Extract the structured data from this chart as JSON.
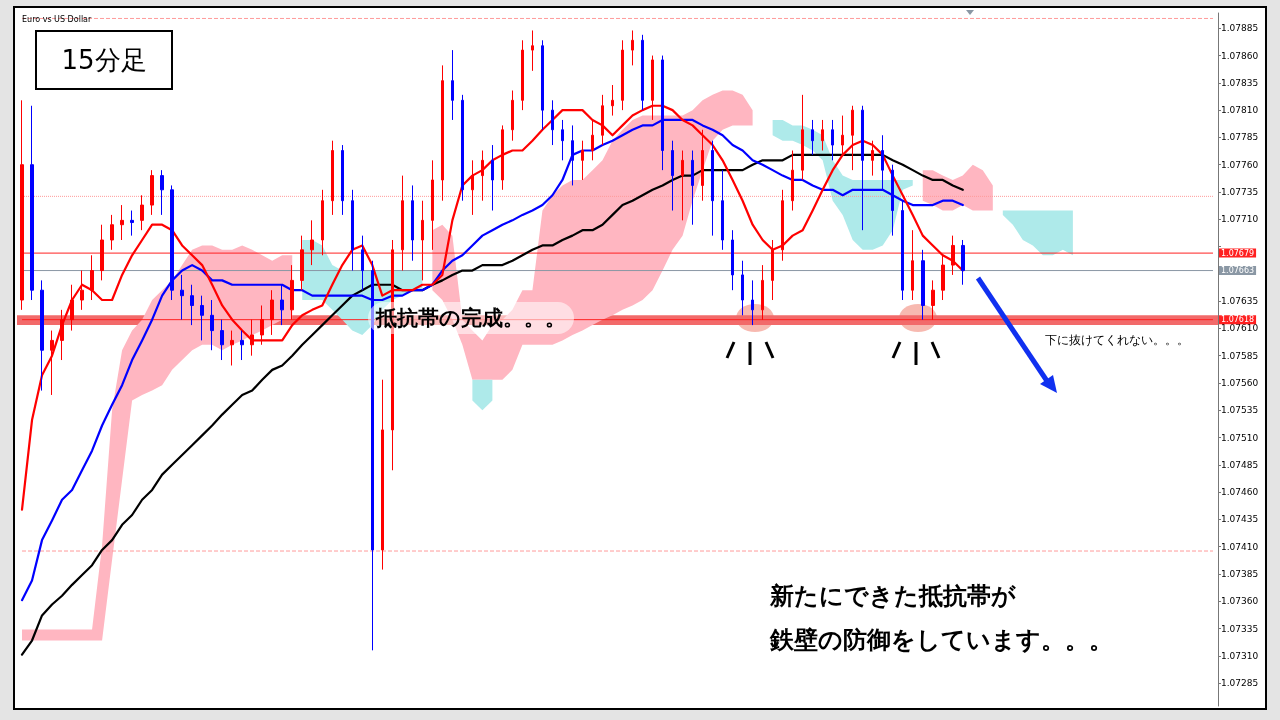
{
  "chart_data": {
    "type": "candlestick",
    "categories": [
      null,
      null,
      null,
      null,
      null,
      null,
      null,
      null,
      null,
      null,
      null,
      null,
      null,
      null,
      null,
      null,
      null,
      null,
      null,
      null,
      null,
      null,
      null,
      null,
      null,
      null,
      null,
      null,
      null,
      null,
      null,
      null,
      null,
      null,
      null,
      null,
      null,
      null,
      null,
      null,
      null,
      null,
      null,
      null,
      null,
      null,
      null,
      null,
      null,
      null,
      null,
      null,
      null,
      null,
      null,
      null,
      null,
      null,
      null,
      null,
      null,
      null,
      null,
      null,
      null,
      null,
      null,
      null,
      null,
      null,
      null,
      null,
      null,
      null,
      null,
      null,
      null,
      null,
      null,
      null,
      null,
      null,
      null,
      null,
      null,
      null,
      null,
      null,
      null,
      null,
      null,
      null,
      null,
      null,
      null,
      null,
      null,
      null,
      null,
      null,
      null,
      null,
      null,
      null,
      null,
      null,
      null,
      null,
      null,
      null,
      null,
      null,
      null,
      null,
      null,
      null,
      null,
      null,
      null,
      null
    ],
    "series": [
      {
        "type": "area",
        "color": "#ffb6c1",
        "values": [
          null,
          null,
          null,
          null,
          null,
          null,
          null,
          null,
          null,
          null,
          null,
          null,
          null,
          null,
          null,
          null,
          null,
          null,
          null,
          null,
          null,
          null,
          null,
          null,
          null,
          null,
          null,
          null,
          null,
          null,
          null,
          null,
          null,
          null,
          null,
          null,
          null,
          null,
          null,
          null,
          null,
          null,
          null,
          null,
          null,
          null,
          null,
          null,
          null,
          null,
          null,
          null,
          null,
          null,
          null,
          null,
          null,
          null,
          null,
          null,
          null,
          null,
          null,
          null,
          null,
          null,
          null,
          null,
          null,
          null,
          null,
          null,
          null,
          null,
          null,
          null,
          null,
          null,
          null,
          null,
          null,
          null,
          null,
          null,
          null,
          null,
          null,
          null,
          null,
          null,
          null,
          null,
          null,
          null,
          null,
          null,
          null,
          null,
          null,
          null,
          null,
          null,
          null,
          null,
          null,
          null,
          null,
          null,
          null,
          null,
          null,
          null,
          null,
          null,
          null,
          null,
          null,
          null,
          null,
          null
        ],
        "upper": [
          1.07334,
          1.07334,
          1.07334,
          1.07334,
          1.07334,
          1.07334,
          1.07334,
          1.07334,
          1.07411,
          1.07535,
          1.0759,
          1.07608,
          1.07618,
          1.07636,
          1.07645,
          1.07654,
          1.07668,
          1.07682,
          1.07686,
          1.07686,
          1.07682,
          1.07682,
          1.07686,
          1.07682,
          1.07677,
          1.07672,
          1.07677,
          1.07677,
          null,
          null,
          null,
          null,
          null,
          null,
          null,
          null,
          null,
          null,
          null,
          null,
          null,
          1.077,
          1.07705,
          1.07695,
          1.07618,
          1.07608,
          1.07599,
          1.07613,
          1.07618,
          1.07627,
          1.07645,
          1.07645,
          1.07718,
          1.07732,
          1.07741,
          1.07746,
          1.07746,
          1.07755,
          1.07764,
          1.07782,
          1.07792,
          1.07801,
          1.07805,
          1.07805,
          1.07805,
          1.07805,
          1.07805,
          1.0781,
          1.07819,
          1.07824,
          1.07828,
          1.07828,
          1.07824,
          1.0781,
          null,
          null,
          null,
          null,
          null,
          null,
          null,
          null,
          null,
          null,
          null,
          null,
          null,
          null,
          null,
          null,
          1.07755,
          1.07755,
          1.0775,
          1.07746,
          1.0775,
          1.0776,
          1.07755,
          1.07741,
          null,
          null,
          null,
          null,
          null,
          null,
          null,
          null,
          null,
          null,
          null,
          null,
          null,
          null,
          null,
          null,
          null,
          null,
          null,
          null,
          null,
          null
        ],
        "lower": [
          1.07324,
          1.07324,
          1.07324,
          1.07324,
          1.07324,
          1.07324,
          1.07324,
          1.07324,
          1.07324,
          1.07398,
          1.07471,
          1.07544,
          1.07549,
          1.07553,
          1.07558,
          1.07572,
          1.07581,
          1.0759,
          1.07595,
          1.07595,
          1.0759,
          1.07595,
          1.07599,
          1.07604,
          1.07608,
          1.07613,
          1.07618,
          1.07618,
          null,
          null,
          null,
          null,
          null,
          null,
          null,
          null,
          null,
          null,
          null,
          null,
          null,
          1.07645,
          1.07636,
          1.07618,
          1.07595,
          1.07563,
          1.07563,
          1.07563,
          1.07563,
          1.07572,
          1.07595,
          1.07595,
          1.07595,
          1.07595,
          1.07599,
          1.07604,
          1.07608,
          1.07613,
          1.07618,
          1.07622,
          1.07627,
          1.07631,
          1.07636,
          1.07645,
          1.07663,
          1.07682,
          1.07695,
          1.07727,
          1.07755,
          1.07782,
          1.07792,
          1.07796,
          1.07796,
          1.07796,
          null,
          null,
          null,
          null,
          null,
          null,
          null,
          null,
          null,
          null,
          null,
          null,
          null,
          null,
          null,
          null,
          1.07727,
          1.07723,
          1.07718,
          1.07718,
          1.07723,
          1.07718,
          1.07718,
          1.07718,
          null,
          null,
          null,
          null,
          null,
          null,
          null,
          null,
          null,
          null,
          null,
          null,
          null,
          null,
          null,
          null,
          null,
          null,
          null,
          null,
          null,
          null
        ]
      },
      {
        "type": "area",
        "color": "#aeeaea",
        "values": [
          null,
          null,
          null,
          null,
          null,
          null,
          null,
          null,
          null,
          null,
          null,
          null,
          null,
          null,
          null,
          null,
          null,
          null,
          null,
          null,
          null,
          null,
          null,
          null,
          null,
          null,
          null,
          null,
          null,
          null,
          null,
          null,
          null,
          null,
          null,
          null,
          null,
          null,
          null,
          null,
          null,
          null,
          null,
          null,
          null,
          null,
          null,
          null,
          null,
          null,
          null,
          null,
          null,
          null,
          null,
          null,
          null,
          null,
          null,
          null,
          null,
          null,
          null,
          null,
          null,
          null,
          null,
          null,
          null,
          null,
          null,
          null,
          null,
          null,
          null,
          null,
          null,
          null,
          null,
          null,
          null,
          null,
          null,
          null,
          null,
          null,
          null,
          null,
          null,
          null,
          null,
          null,
          null,
          null,
          null,
          null,
          null,
          null,
          null,
          null,
          null,
          null,
          null,
          null,
          null,
          null,
          null,
          null,
          null,
          null,
          null,
          null,
          null,
          null,
          null,
          null,
          null,
          null,
          null,
          null
        ],
        "upper": [
          null,
          null,
          null,
          null,
          null,
          null,
          null,
          null,
          null,
          null,
          null,
          null,
          null,
          null,
          null,
          null,
          null,
          null,
          null,
          null,
          null,
          null,
          null,
          null,
          null,
          null,
          null,
          null,
          1.07691,
          1.07691,
          1.07686,
          1.07668,
          1.07663,
          1.07663,
          1.07663,
          1.07663,
          1.07663,
          1.07663,
          1.07663,
          1.07663,
          1.07663,
          null,
          null,
          null,
          null,
          1.07563,
          1.07563,
          1.07563,
          null,
          null,
          null,
          null,
          null,
          null,
          null,
          null,
          null,
          null,
          null,
          null,
          null,
          null,
          null,
          null,
          null,
          null,
          null,
          null,
          null,
          null,
          null,
          null,
          null,
          null,
          null,
          1.07801,
          1.07801,
          1.07796,
          1.07796,
          1.07792,
          1.07787,
          1.07764,
          1.0775,
          1.07746,
          1.07746,
          1.07746,
          1.07746,
          1.07746,
          1.07746,
          1.07746,
          null,
          null,
          null,
          null,
          null,
          null,
          null,
          null,
          1.07718,
          1.07718,
          1.07718,
          1.07718,
          1.07718,
          1.07718,
          1.07718,
          1.07718,
          null,
          null,
          null,
          null,
          null,
          null,
          null,
          null,
          null,
          null,
          null,
          null,
          null,
          null
        ],
        "lower": [
          null,
          null,
          null,
          null,
          null,
          null,
          null,
          null,
          null,
          null,
          null,
          null,
          null,
          null,
          null,
          null,
          null,
          null,
          null,
          null,
          null,
          null,
          null,
          null,
          null,
          null,
          null,
          null,
          1.07636,
          1.07636,
          1.07636,
          1.07627,
          1.07618,
          1.07608,
          1.07604,
          1.07613,
          1.07627,
          1.07636,
          1.0764,
          1.07645,
          1.07645,
          null,
          null,
          null,
          null,
          1.07544,
          1.07535,
          1.07544,
          null,
          null,
          null,
          null,
          null,
          null,
          null,
          null,
          null,
          null,
          null,
          null,
          null,
          null,
          null,
          null,
          null,
          null,
          null,
          null,
          null,
          null,
          null,
          null,
          null,
          null,
          null,
          1.07787,
          1.07782,
          1.07782,
          1.07778,
          1.07773,
          1.07764,
          1.07727,
          1.07714,
          1.07691,
          1.07682,
          1.07682,
          1.07686,
          1.077,
          1.07737,
          1.07741,
          null,
          null,
          null,
          null,
          null,
          null,
          null,
          null,
          1.07714,
          1.07705,
          1.07691,
          1.07686,
          1.07677,
          1.07677,
          1.07682,
          1.07677,
          null,
          null,
          null,
          null,
          null,
          null,
          null,
          null,
          null,
          null,
          null,
          null,
          null,
          null
        ]
      },
      {
        "type": "line",
        "color": "#000000",
        "values": [
          1.07311,
          1.07324,
          1.07347,
          1.07357,
          1.07365,
          1.07375,
          1.07384,
          1.07393,
          1.07407,
          1.07416,
          1.0743,
          1.07439,
          1.07453,
          1.07462,
          1.07476,
          1.07485,
          1.07494,
          1.07503,
          1.07512,
          1.07521,
          1.07531,
          1.0754,
          1.07549,
          1.07553,
          1.07563,
          1.07572,
          1.07576,
          1.07585,
          1.07595,
          1.07604,
          1.07613,
          1.07622,
          1.07631,
          1.0764,
          1.07645,
          1.0765,
          1.0765,
          1.0765,
          1.07645,
          1.07645,
          1.07645,
          1.0765,
          1.07654,
          1.07659,
          1.07663,
          1.07663,
          1.07668,
          1.07668,
          1.07668,
          1.07672,
          1.07677,
          1.07682,
          1.07686,
          1.07686,
          1.07691,
          1.07695,
          1.077,
          1.077,
          1.07705,
          1.07714,
          1.07723,
          1.07727,
          1.07732,
          1.07737,
          1.07741,
          1.07746,
          1.0775,
          1.0775,
          1.07755,
          1.07755,
          1.07755,
          1.07755,
          1.07755,
          1.0776,
          1.07764,
          1.07764,
          1.07764,
          1.07769,
          1.07769,
          1.07769,
          1.07769,
          1.07769,
          1.07769,
          1.07769,
          1.07769,
          1.07769,
          1.07769,
          1.07764,
          1.0776,
          1.07755,
          1.0775,
          1.07746,
          1.07746,
          1.07741,
          1.07737,
          null,
          null,
          null,
          null,
          null,
          null,
          null,
          null,
          null,
          null,
          null,
          null,
          null,
          null,
          null,
          null,
          null,
          null,
          null,
          null,
          null,
          null,
          null,
          null,
          null
        ]
      },
      {
        "type": "line",
        "color": "#0000ff",
        "values": [
          1.07361,
          1.07379,
          1.07416,
          1.07434,
          1.07453,
          1.07462,
          1.0748,
          1.07498,
          1.07521,
          1.0754,
          1.07558,
          1.07581,
          1.07599,
          1.07618,
          1.0764,
          1.07654,
          1.07663,
          1.07668,
          1.07663,
          1.07654,
          1.07654,
          1.0765,
          1.0765,
          1.0765,
          1.0765,
          1.0765,
          1.0765,
          1.07645,
          1.07645,
          1.0764,
          1.0764,
          1.0764,
          1.0764,
          1.0764,
          1.0764,
          1.07636,
          1.07636,
          1.0764,
          1.0764,
          1.07645,
          1.07645,
          1.0765,
          1.07663,
          1.07672,
          1.07677,
          1.07686,
          1.07695,
          1.077,
          1.07705,
          1.07709,
          1.07714,
          1.07718,
          1.07723,
          1.07732,
          1.07746,
          1.07769,
          1.07773,
          1.07773,
          1.07778,
          1.07782,
          1.07787,
          1.07792,
          1.07796,
          1.07796,
          1.07801,
          1.07801,
          1.07801,
          1.07801,
          1.07796,
          1.07792,
          1.07787,
          1.07778,
          1.07773,
          1.07764,
          1.0776,
          1.07755,
          1.0775,
          1.07746,
          1.07746,
          1.07741,
          1.07737,
          1.07737,
          1.07732,
          1.07737,
          1.07737,
          1.07737,
          1.07737,
          1.07732,
          1.07727,
          1.07723,
          1.07723,
          1.07723,
          1.07727,
          1.07727,
          1.07723,
          null,
          null,
          null,
          null,
          null,
          null,
          null,
          null,
          null,
          null,
          null,
          null,
          null,
          null,
          null,
          null,
          null,
          null,
          null,
          null,
          null,
          null,
          null,
          null,
          null
        ]
      },
      {
        "type": "line",
        "color": "#ff0000",
        "values": [
          1.07444,
          1.07526,
          1.07567,
          1.07585,
          1.07613,
          1.07636,
          1.0765,
          1.07645,
          1.07636,
          1.07636,
          1.07659,
          1.07677,
          1.07691,
          1.07705,
          1.07705,
          1.077,
          1.07686,
          1.07677,
          1.07668,
          1.0765,
          1.07631,
          1.07618,
          1.07608,
          1.07599,
          1.07599,
          1.07599,
          1.07599,
          1.07613,
          1.07622,
          1.07627,
          1.07631,
          1.0765,
          1.07668,
          1.07682,
          1.07686,
          1.07668,
          1.0764,
          1.07645,
          1.07645,
          1.07645,
          1.0765,
          1.0765,
          1.07659,
          1.07709,
          1.07741,
          1.0775,
          1.07755,
          1.07764,
          1.07769,
          1.07773,
          1.07773,
          1.07782,
          1.07792,
          1.07801,
          1.0781,
          1.0781,
          1.0781,
          1.07801,
          1.07796,
          1.07787,
          1.07796,
          1.07805,
          1.0781,
          1.07814,
          1.07814,
          1.0781,
          1.07801,
          1.07796,
          1.07787,
          1.07778,
          1.07764,
          1.07746,
          1.07727,
          1.07705,
          1.07691,
          1.07682,
          1.07686,
          1.07695,
          1.077,
          1.07718,
          1.07737,
          1.07755,
          1.07769,
          1.07778,
          1.07782,
          1.07778,
          1.07769,
          1.0775,
          1.07732,
          1.07714,
          1.07695,
          1.07686,
          1.07677,
          1.07672,
          1.07663,
          null,
          null,
          null,
          null,
          null,
          null,
          null,
          null,
          null,
          null,
          null,
          null,
          null,
          null,
          null,
          null,
          null,
          null,
          null,
          null,
          null,
          null,
          null,
          null,
          null
        ]
      },
      {
        "type": "candlestick",
        "color": "#ff0000",
        "ohlc": [
          [
            1.07636,
            1.07819,
            1.07627,
            1.0776
          ],
          null,
          null,
          [
            1.0759,
            1.07608,
            1.07549,
            1.07599
          ],
          [
            1.07599,
            1.07627,
            1.07581,
            1.07618
          ],
          [
            1.07618,
            1.0765,
            1.07608,
            1.07636
          ],
          [
            1.07636,
            1.07663,
            1.07627,
            1.07645
          ],
          [
            1.07645,
            1.07677,
            1.07636,
            1.07663
          ],
          [
            1.07663,
            1.07705,
            1.07654,
            1.07691
          ],
          [
            1.07691,
            1.07714,
            1.07682,
            1.07705
          ],
          [
            1.07705,
            1.07723,
            1.07691,
            1.07709
          ],
          null,
          [
            1.07709,
            1.07732,
            1.077,
            1.07723
          ],
          [
            1.07723,
            1.07755,
            1.07714,
            1.0775
          ],
          null,
          null,
          null,
          null,
          null,
          null,
          null,
          [
            1.07595,
            1.07608,
            1.07576,
            1.07599
          ],
          null,
          [
            1.07595,
            1.07618,
            1.07585,
            1.07604
          ],
          [
            1.07604,
            1.07631,
            1.07595,
            1.07618
          ],
          [
            1.07618,
            1.07645,
            1.07604,
            1.07636
          ],
          null,
          [
            1.07627,
            1.07668,
            1.07618,
            1.07654
          ],
          [
            1.07654,
            1.07695,
            1.07645,
            1.07682
          ],
          [
            1.07682,
            1.07709,
            1.07668,
            1.07691
          ],
          [
            1.07691,
            1.07737,
            1.07677,
            1.07727
          ],
          [
            1.07727,
            1.07782,
            1.07714,
            1.07773
          ],
          null,
          null,
          null,
          null,
          [
            1.07407,
            1.07563,
            1.07389,
            1.07517
          ],
          [
            1.07517,
            1.07691,
            1.0748,
            1.07682
          ],
          [
            1.07682,
            1.0775,
            1.07663,
            1.07727
          ],
          null,
          [
            1.07691,
            1.07727,
            1.07654,
            1.07709
          ],
          [
            1.07709,
            1.07764,
            1.07682,
            1.07746
          ],
          [
            1.07746,
            1.07851,
            1.07727,
            1.07837
          ],
          null,
          null,
          [
            1.07737,
            1.07764,
            1.07714,
            1.0775
          ],
          [
            1.0775,
            1.07773,
            1.07727,
            1.07764
          ],
          null,
          [
            1.07746,
            1.07796,
            1.07737,
            1.07792
          ],
          [
            1.07792,
            1.07828,
            1.07782,
            1.07819
          ],
          [
            1.07819,
            1.07874,
            1.0781,
            1.07865
          ],
          [
            1.07865,
            1.07883,
            1.07846,
            1.07869
          ],
          null,
          null,
          null,
          null,
          [
            1.07764,
            1.07782,
            1.07746,
            1.07773
          ],
          [
            1.07773,
            1.07801,
            1.07764,
            1.07787
          ],
          [
            1.07787,
            1.07824,
            1.07778,
            1.07814
          ],
          [
            1.07814,
            1.07833,
            1.07805,
            1.07819
          ],
          [
            1.07819,
            1.07874,
            1.0781,
            1.07865
          ],
          [
            1.07865,
            1.07883,
            1.07851,
            1.07874
          ],
          null,
          [
            1.07819,
            1.0786,
            1.07801,
            1.07856
          ],
          null,
          null,
          [
            1.0775,
            1.07773,
            1.07709,
            1.07764
          ],
          null,
          [
            1.07741,
            1.07792,
            1.07727,
            1.07773
          ],
          null,
          null,
          null,
          null,
          null,
          [
            1.07627,
            1.07668,
            1.07618,
            1.07654
          ],
          [
            1.07654,
            1.07691,
            1.07636,
            1.07682
          ],
          [
            1.07682,
            1.07737,
            1.07672,
            1.07727
          ],
          [
            1.07727,
            1.07773,
            1.07718,
            1.07755
          ],
          [
            1.07755,
            1.07824,
            1.07746,
            1.07792
          ],
          null,
          [
            1.07782,
            1.07801,
            1.07773,
            1.07792
          ],
          null,
          [
            1.07778,
            1.07805,
            1.07769,
            1.07787
          ],
          [
            1.07787,
            1.07814,
            1.07755,
            1.0781
          ],
          null,
          [
            1.07764,
            1.07782,
            1.0775,
            1.07773
          ],
          null,
          null,
          null,
          [
            1.07645,
            1.077,
            1.07636,
            1.07672
          ],
          null,
          [
            1.07631,
            1.07654,
            1.07618,
            1.07645
          ],
          [
            1.07645,
            1.07677,
            1.07636,
            1.07668
          ],
          [
            1.07668,
            1.07695,
            1.07659,
            1.07686
          ],
          null,
          null,
          null,
          null,
          null,
          null,
          null,
          null,
          null,
          null,
          null,
          null,
          null,
          null,
          null,
          null,
          null,
          null,
          null,
          null,
          null,
          null,
          null,
          null,
          null,
          null
        ]
      },
      {
        "type": "candlestick",
        "color": "#0000ff",
        "ohlc": [
          null,
          [
            1.0776,
            1.07814,
            1.07636,
            1.07645
          ],
          [
            1.07645,
            1.07654,
            1.07553,
            1.0759
          ],
          null,
          null,
          null,
          null,
          null,
          null,
          null,
          null,
          [
            1.07709,
            1.07718,
            1.07695,
            1.07707
          ],
          null,
          null,
          [
            1.0775,
            1.07755,
            1.07714,
            1.07737
          ],
          [
            1.07737,
            1.07741,
            1.07636,
            1.07645
          ],
          [
            1.07645,
            1.07659,
            1.07618,
            1.0764
          ],
          [
            1.0764,
            1.0765,
            1.07613,
            1.07631
          ],
          [
            1.07631,
            1.0764,
            1.07599,
            1.07622
          ],
          [
            1.07622,
            1.07636,
            1.0759,
            1.07608
          ],
          [
            1.07608,
            1.07618,
            1.07581,
            1.07595
          ],
          null,
          [
            1.07599,
            1.07608,
            1.07581,
            1.07595
          ],
          null,
          null,
          null,
          [
            1.07636,
            1.0765,
            1.07613,
            1.07627
          ],
          null,
          null,
          null,
          null,
          null,
          [
            1.07773,
            1.07778,
            1.07714,
            1.07727
          ],
          [
            1.07727,
            1.07737,
            1.07663,
            1.07682
          ],
          [
            1.07682,
            1.07695,
            1.07645,
            1.07663
          ],
          [
            1.07663,
            1.07672,
            1.07315,
            1.07407
          ],
          null,
          null,
          null,
          [
            1.07727,
            1.07741,
            1.07672,
            1.07691
          ],
          null,
          null,
          null,
          [
            1.07837,
            1.07865,
            1.07801,
            1.07819
          ],
          [
            1.07819,
            1.07824,
            1.07727,
            1.07737
          ],
          null,
          null,
          [
            1.07764,
            1.07778,
            1.07718,
            1.07746
          ],
          null,
          null,
          null,
          null,
          [
            1.07869,
            1.07874,
            1.07792,
            1.0781
          ],
          [
            1.0781,
            1.07819,
            1.07778,
            1.07792
          ],
          [
            1.07792,
            1.07801,
            1.07764,
            1.07782
          ],
          [
            1.07782,
            1.07796,
            1.07741,
            1.07764
          ],
          null,
          null,
          null,
          null,
          null,
          null,
          [
            1.07874,
            1.07879,
            1.0781,
            1.07819
          ],
          null,
          [
            1.07856,
            1.0786,
            1.07755,
            1.07773
          ],
          [
            1.07773,
            1.07782,
            1.07718,
            1.0775
          ],
          null,
          [
            1.07764,
            1.07773,
            1.07705,
            1.07741
          ],
          null,
          [
            1.07773,
            1.07782,
            1.07695,
            1.07727
          ],
          [
            1.07727,
            1.07755,
            1.07682,
            1.07691
          ],
          [
            1.07691,
            1.077,
            1.07645,
            1.07659
          ],
          [
            1.07659,
            1.07672,
            1.07622,
            1.07636
          ],
          [
            1.07636,
            1.07654,
            1.07613,
            1.07627
          ],
          null,
          null,
          null,
          null,
          null,
          [
            1.07792,
            1.07801,
            1.07769,
            1.07782
          ],
          null,
          [
            1.07792,
            1.07801,
            1.07764,
            1.07778
          ],
          null,
          null,
          [
            1.0781,
            1.07814,
            1.077,
            1.07764
          ],
          null,
          [
            1.07773,
            1.07787,
            1.07737,
            1.07755
          ],
          [
            1.07755,
            1.0776,
            1.07695,
            1.07718
          ],
          [
            1.07718,
            1.07727,
            1.07636,
            1.07645
          ],
          null,
          [
            1.07672,
            1.07682,
            1.07618,
            1.07631
          ],
          null,
          null,
          null,
          [
            1.07686,
            1.07691,
            1.0765,
            1.07663
          ],
          null,
          null,
          null,
          null,
          null,
          null,
          null,
          null,
          null,
          null,
          null,
          null,
          null,
          null,
          null,
          null,
          null,
          null,
          null,
          null,
          null,
          null,
          null,
          null,
          null
        ]
      }
    ],
    "ylim": [
      1.07264,
      1.07899
    ],
    "yticks": [
      {
        "value": 1.07285,
        "label": "1.07285"
      },
      {
        "value": 1.0731,
        "label": "1.07310"
      },
      {
        "value": 1.07335,
        "label": "1.07335"
      },
      {
        "value": 1.0736,
        "label": "1.07360"
      },
      {
        "value": 1.07385,
        "label": "1.07385"
      },
      {
        "value": 1.0741,
        "label": "1.07410"
      },
      {
        "value": 1.07435,
        "label": "1.07435"
      },
      {
        "value": 1.0746,
        "label": "1.07460"
      },
      {
        "value": 1.07485,
        "label": "1.07485"
      },
      {
        "value": 1.0751,
        "label": "1.07510"
      },
      {
        "value": 1.07535,
        "label": "1.07535"
      },
      {
        "value": 1.0756,
        "label": "1.07560"
      },
      {
        "value": 1.07585,
        "label": "1.07585"
      },
      {
        "value": 1.0761,
        "label": "1.07610"
      },
      {
        "value": 1.07635,
        "label": "1.07635"
      },
      {
        "value": 1.0766,
        "label": null
      },
      {
        "value": 1.07685,
        "label": null
      },
      {
        "value": 1.0771,
        "label": "1.07710"
      },
      {
        "value": 1.07735,
        "label": "1.07735"
      },
      {
        "value": 1.0776,
        "label": "1.07760"
      },
      {
        "value": 1.07785,
        "label": "1.07785"
      },
      {
        "value": 1.0781,
        "label": "1.07810"
      },
      {
        "value": 1.07835,
        "label": "1.07835"
      },
      {
        "value": 1.0786,
        "label": "1.07860"
      },
      {
        "value": 1.07885,
        "label": "1.07885"
      }
    ],
    "bands": [
      {
        "axis": "y",
        "from": 1.07613,
        "to": 1.07622,
        "color": "#f26a6a"
      }
    ],
    "ref_lines": [
      {
        "axis": "y",
        "value": 1.07894,
        "color": "#ff9a9a",
        "line_style": "dashed"
      },
      {
        "axis": "y",
        "value": 1.07731,
        "color": "#ff9a9a",
        "line_style": "dotted"
      },
      {
        "axis": "y",
        "value": 1.07406,
        "color": "#ff9a9a",
        "line_style": "dashed"
      },
      {
        "axis": "y",
        "value": 1.07679,
        "label": "1.07679",
        "color": "#ff2020",
        "line_style": "solid"
      },
      {
        "axis": "y",
        "value": 1.07663,
        "label": "1.07663",
        "color": "#8a97a4",
        "line_style": "solid"
      },
      {
        "axis": "y",
        "value": 1.07618,
        "label": "1.07618",
        "color": "#ff2020",
        "line_style": "solid"
      }
    ],
    "annotations": [
      "Euro vs US Dollar",
      "15分足",
      "抵抗帯の完成。。。",
      "下に抜けてくれない。。。",
      "新たにできた抵抗帯が",
      "鉄壁の防御をしています。。。"
    ],
    "grid": false,
    "marker": "none",
    "tick_labels": "y"
  }
}
